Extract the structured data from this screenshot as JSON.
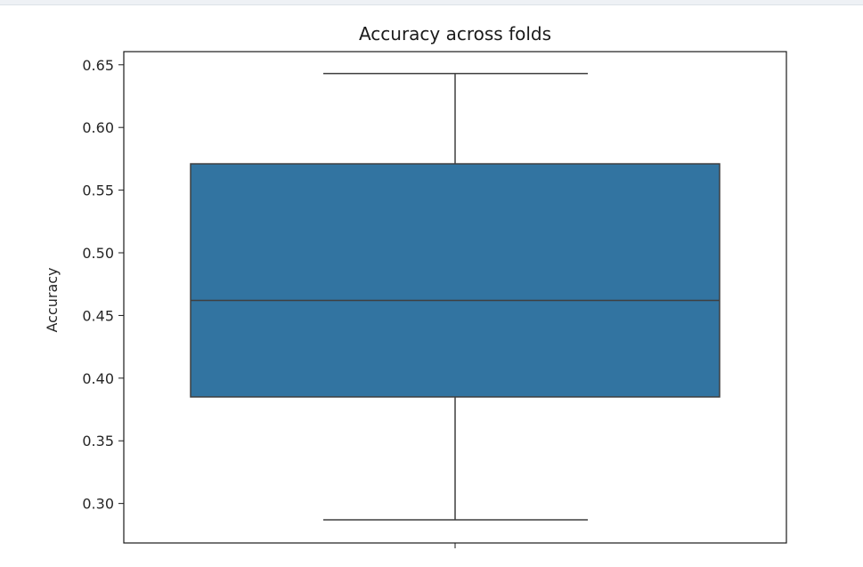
{
  "chart_data": {
    "type": "box",
    "title": "Accuracy across folds",
    "xlabel": "",
    "ylabel": "Accuracy",
    "ylim": [
      0.2685,
      0.6605
    ],
    "yticks": [
      0.3,
      0.35,
      0.4,
      0.45,
      0.5,
      0.55,
      0.6,
      0.65
    ],
    "ytick_labels": [
      "0.30",
      "0.35",
      "0.40",
      "0.45",
      "0.50",
      "0.55",
      "0.60",
      "0.65"
    ],
    "box": {
      "whisker_low": 0.287,
      "q1": 0.385,
      "median": 0.462,
      "q3": 0.571,
      "whisker_high": 0.643
    },
    "grid": false,
    "legend": "none",
    "colors": {
      "box_fill": "#3274a1",
      "line": "#3f3f3f",
      "axes": "#1a1a1a"
    }
  }
}
